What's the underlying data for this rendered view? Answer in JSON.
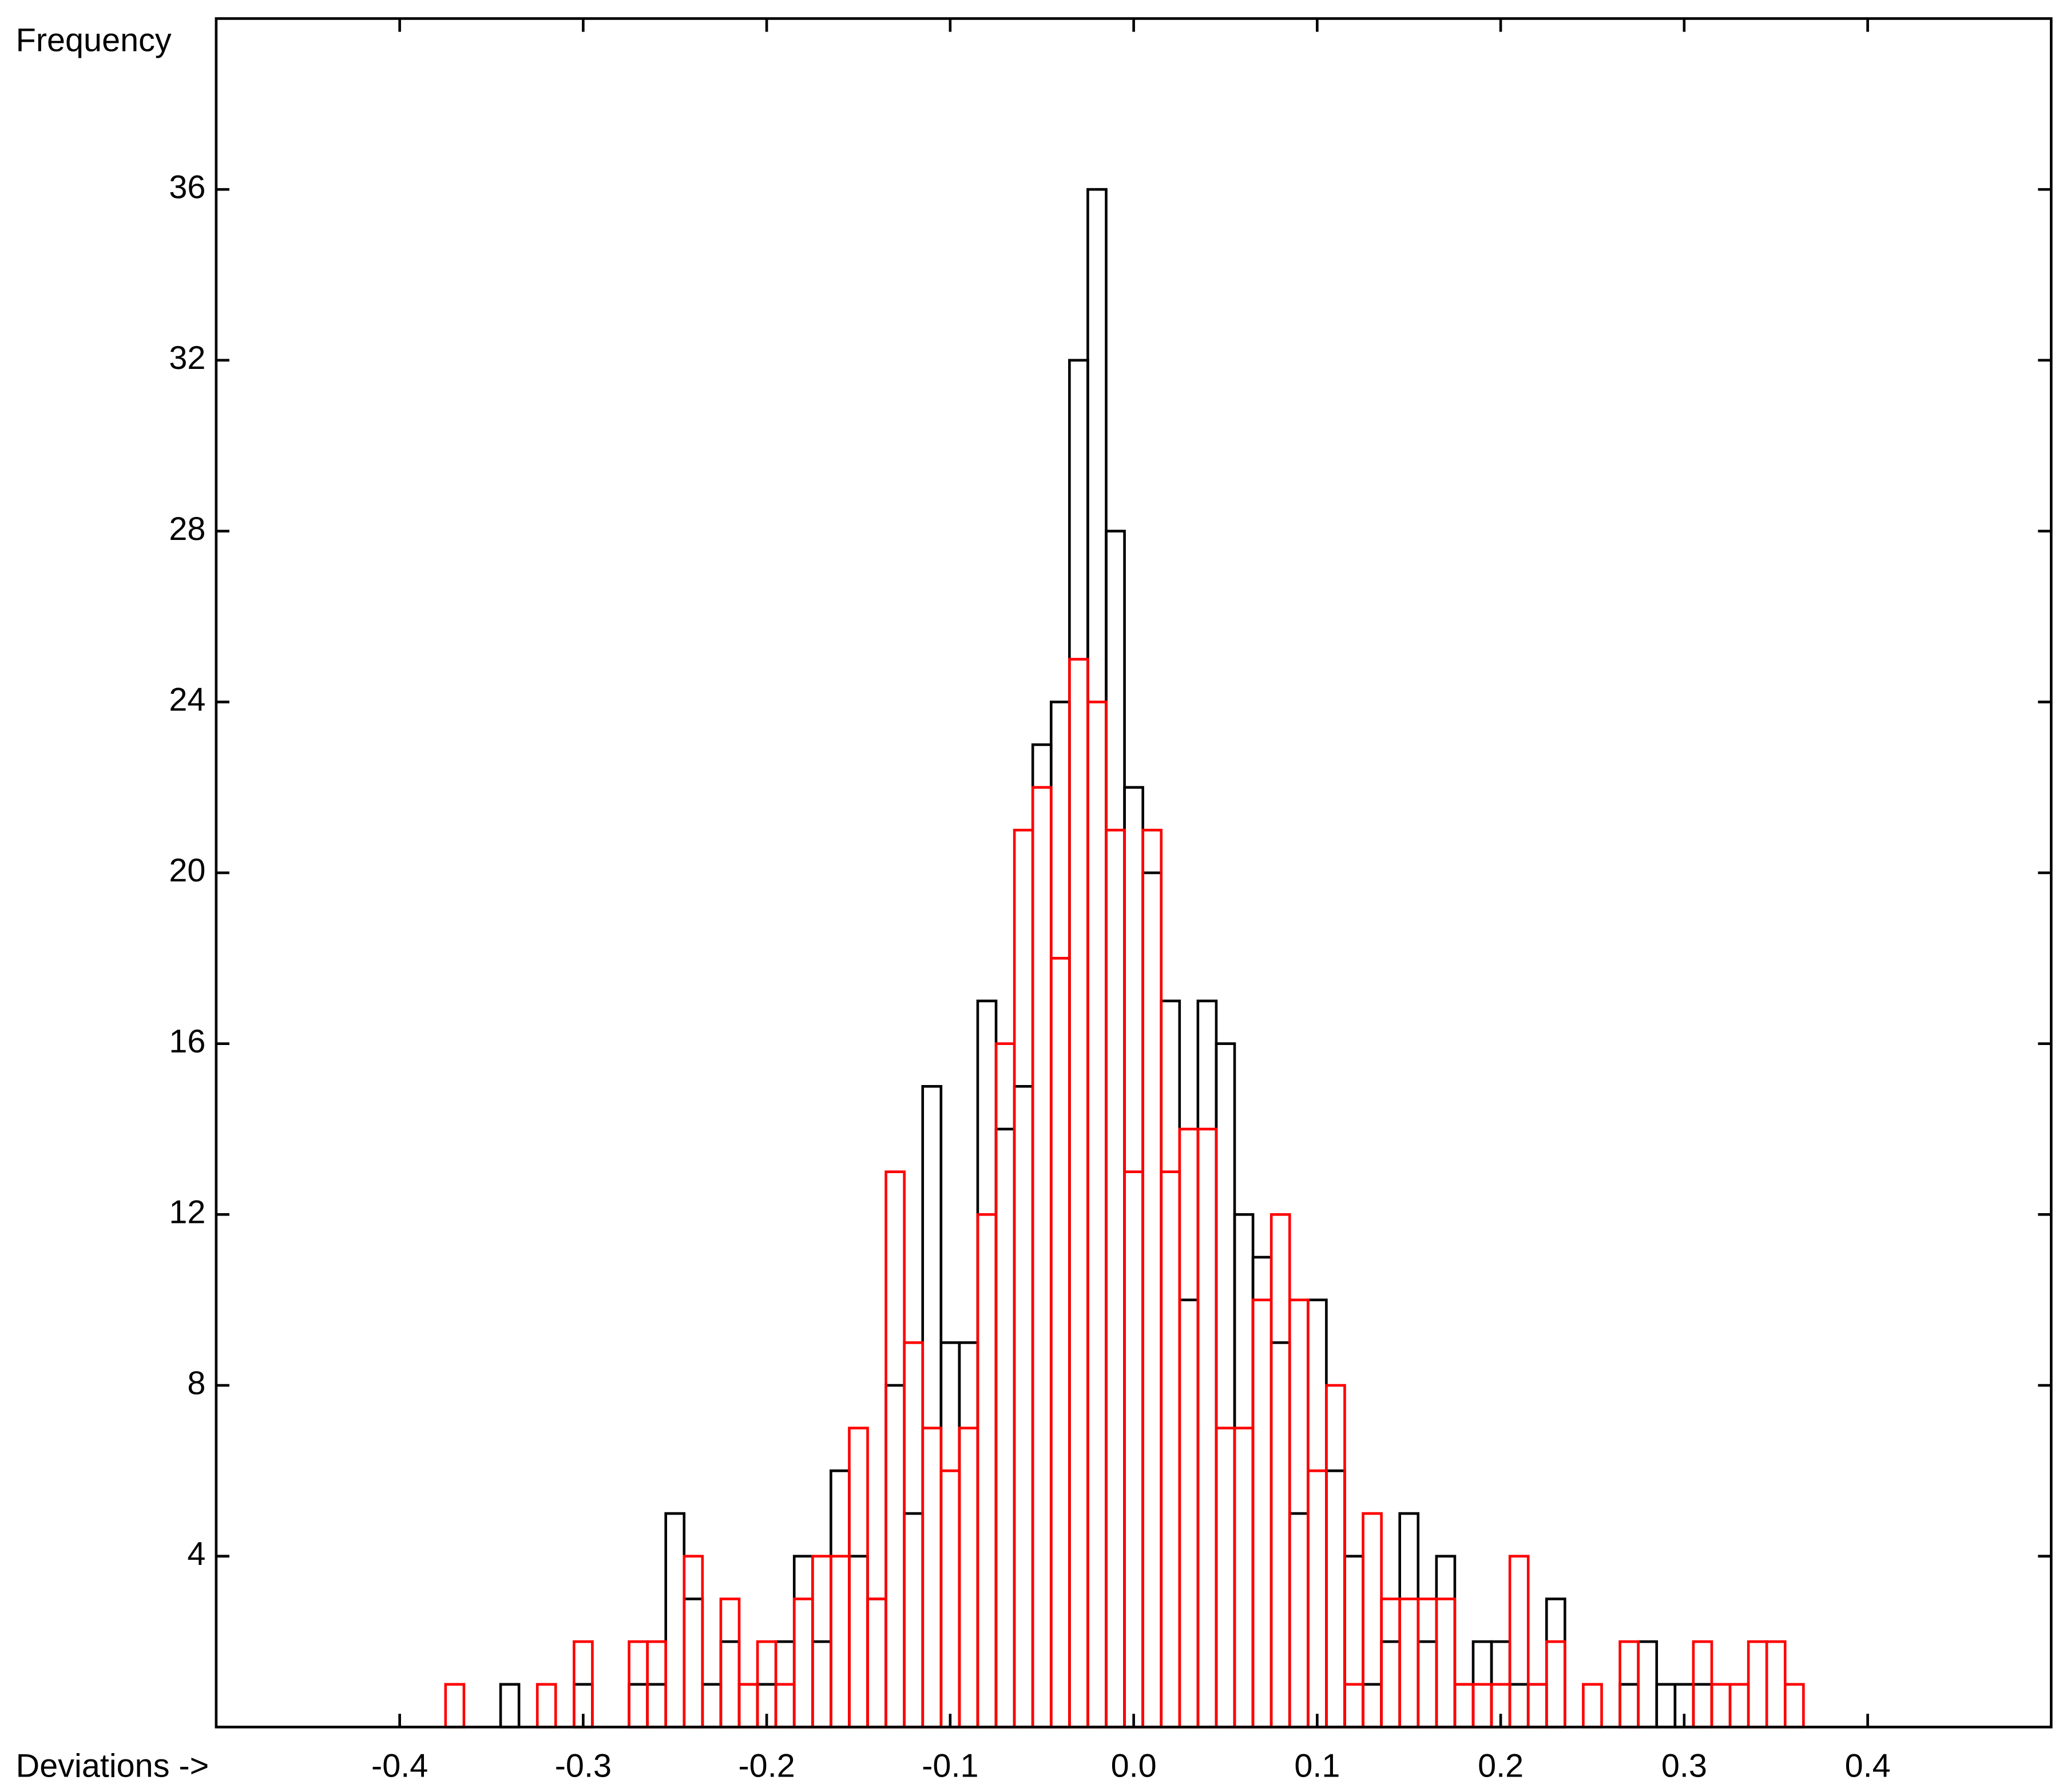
{
  "chart_data": {
    "type": "histogram",
    "ylabel": "Frequency",
    "xlabel": "Deviations ->",
    "bins": [
      -0.375,
      -0.365,
      -0.355,
      -0.345,
      -0.335,
      -0.325,
      -0.315,
      -0.305,
      -0.295,
      -0.285,
      -0.275,
      -0.265,
      -0.255,
      -0.245,
      -0.235,
      -0.225,
      -0.215,
      -0.205,
      -0.195,
      -0.185,
      -0.175,
      -0.165,
      -0.155,
      -0.145,
      -0.135,
      -0.125,
      -0.115,
      -0.105,
      -0.095,
      -0.085,
      -0.075,
      -0.065,
      -0.055,
      -0.045,
      -0.035,
      -0.025,
      -0.015,
      -0.005,
      0.005,
      0.015,
      0.025,
      0.035,
      0.045,
      0.055,
      0.065,
      0.075,
      0.085,
      0.095,
      0.105,
      0.115,
      0.125,
      0.135,
      0.145,
      0.155,
      0.165,
      0.175,
      0.185,
      0.195,
      0.205,
      0.215,
      0.225,
      0.235,
      0.245,
      0.255,
      0.265,
      0.275,
      0.285,
      0.295,
      0.305,
      0.315,
      0.325,
      0.335,
      0.345,
      0.355,
      0.365
    ],
    "series": [
      {
        "color": "#000000",
        "values": [
          0,
          0,
          0,
          1,
          0,
          0,
          0,
          1,
          0,
          0,
          1,
          1,
          5,
          3,
          1,
          2,
          1,
          1,
          2,
          4,
          2,
          6,
          4,
          3,
          8,
          5,
          15,
          9,
          9,
          17,
          14,
          15,
          23,
          24,
          32,
          36,
          28,
          22,
          20,
          17,
          10,
          17,
          16,
          12,
          11,
          9,
          5,
          10,
          6,
          4,
          1,
          2,
          5,
          2,
          4,
          1,
          2,
          2,
          1,
          1,
          3,
          0,
          0,
          0,
          1,
          2,
          1,
          1,
          1,
          0,
          0,
          0,
          0,
          0
        ]
      },
      {
        "color": "#ff0000",
        "values": [
          1,
          0,
          0,
          0,
          0,
          1,
          0,
          2,
          0,
          0,
          2,
          2,
          0,
          4,
          0,
          3,
          1,
          2,
          1,
          3,
          4,
          4,
          7,
          3,
          13,
          9,
          7,
          6,
          7,
          12,
          16,
          21,
          22,
          18,
          25,
          24,
          21,
          13,
          21,
          13,
          14,
          14,
          7,
          7,
          10,
          12,
          10,
          6,
          8,
          1,
          5,
          3,
          3,
          3,
          3,
          1,
          1,
          1,
          4,
          1,
          2,
          0,
          1,
          0,
          2,
          0,
          0,
          0,
          2,
          1,
          1,
          2,
          2,
          1
        ]
      }
    ],
    "xlim": [
      -0.5,
      0.5
    ],
    "ylim": [
      0,
      40
    ],
    "xticks": [
      -0.4,
      -0.3,
      -0.2,
      -0.1,
      {
        "value": 0,
        "label": "0.0"
      },
      0.1,
      0.2,
      0.3,
      0.4
    ],
    "yticks": [
      4,
      8,
      12,
      16,
      20,
      24,
      28,
      32,
      36
    ]
  }
}
